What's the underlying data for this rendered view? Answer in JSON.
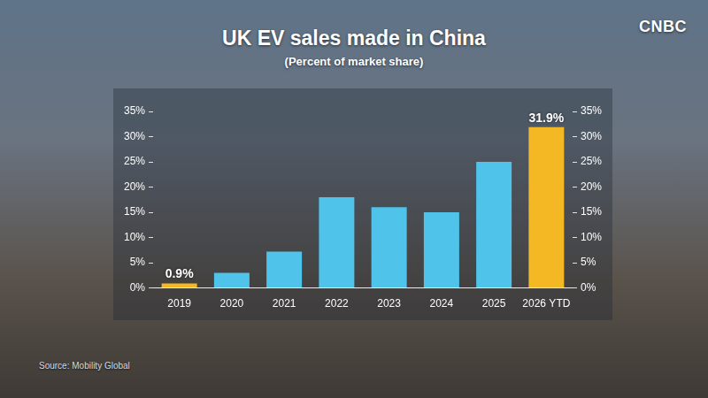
{
  "chart_data": {
    "type": "bar",
    "title": "UK EV sales made in China",
    "subtitle": "(Percent of market share)",
    "source": "Source: Mobility Global",
    "logo": "CNBC",
    "categories": [
      "2019",
      "2020",
      "2021",
      "2022",
      "2023",
      "2024",
      "2025",
      "2026 YTD"
    ],
    "values": [
      0.9,
      3.0,
      7.2,
      18.0,
      16.0,
      15.0,
      25.0,
      31.9
    ],
    "value_labels": [
      "0.9%",
      null,
      null,
      null,
      null,
      null,
      null,
      "31.9%"
    ],
    "colors": [
      "#f3b824",
      "#4fc3ea",
      "#4fc3ea",
      "#4fc3ea",
      "#4fc3ea",
      "#4fc3ea",
      "#4fc3ea",
      "#f3b824"
    ],
    "ylim": [
      0,
      35
    ],
    "yticks": [
      {
        "value": 0,
        "label": "0%"
      },
      {
        "value": 5,
        "label": "5%"
      },
      {
        "value": 10,
        "label": "10%"
      },
      {
        "value": 15,
        "label": "15%"
      },
      {
        "value": 20,
        "label": "20%"
      },
      {
        "value": 25,
        "label": "25%"
      },
      {
        "value": 30,
        "label": "30%"
      },
      {
        "value": 35,
        "label": "35%"
      }
    ],
    "y2lim": [
      0,
      35
    ],
    "y2ticks": [
      {
        "value": 0,
        "label": "0%"
      },
      {
        "value": 5,
        "label": "5%"
      },
      {
        "value": 10,
        "label": "10%"
      },
      {
        "value": 15,
        "label": "15%"
      },
      {
        "value": 20,
        "label": "20%"
      },
      {
        "value": 25,
        "label": "25%"
      },
      {
        "value": 30,
        "label": "30%"
      },
      {
        "value": 35,
        "label": "35%"
      }
    ],
    "grid": false
  }
}
